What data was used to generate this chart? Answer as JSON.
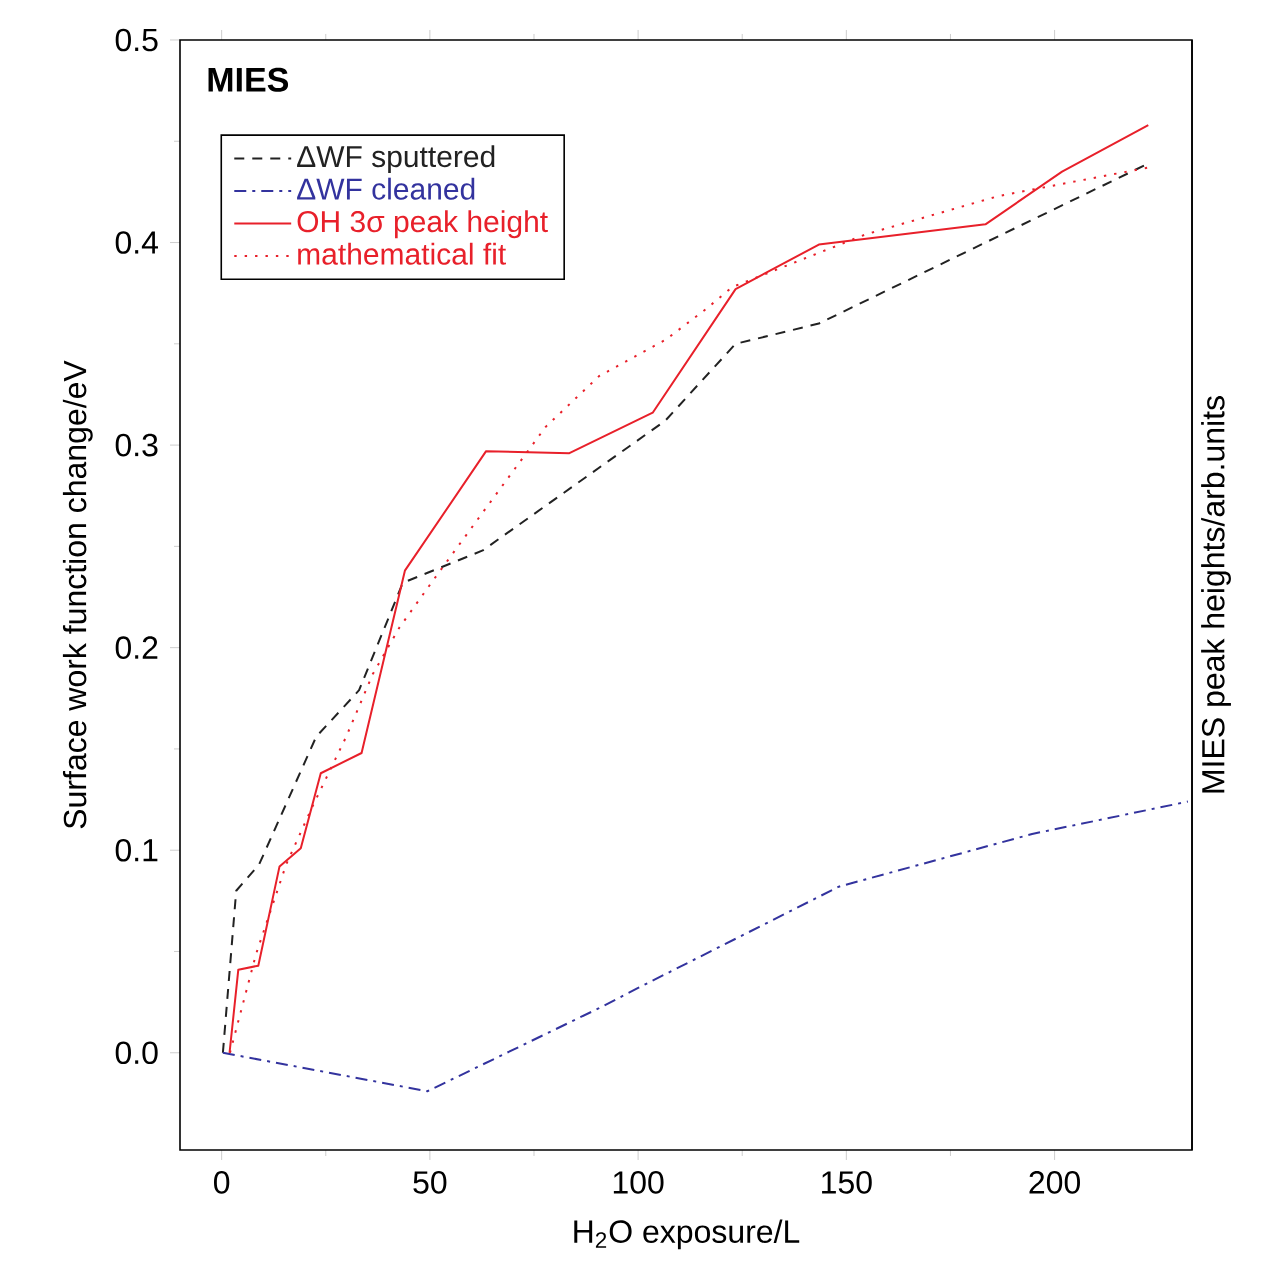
{
  "chart_data": {
    "type": "line",
    "xlabel": "H$_{2}$O exposure/L",
    "ylabel": "Surface work function change/eV",
    "y2label": "MIES peak heights/arb.units",
    "annotations": [
      "**MIES**"
    ],
    "xlim": [
      -10,
      233
    ],
    "ylim": [
      -0.048,
      0.5
    ],
    "xticks": [
      0,
      50,
      100,
      150,
      200
    ],
    "yticks": [
      {
        "value": 0,
        "label": "0.0"
      },
      0.1,
      0.2,
      0.3,
      0.4,
      0.5
    ],
    "grid": false,
    "legend": "top left",
    "marker": "none",
    "series": [
      {
        "name": "ΔWF sputtered",
        "color": "#222222",
        "line_style": "dashed",
        "x": [
          0.3,
          3.5,
          9,
          22.7,
          33,
          43.5,
          62.7,
          106.5,
          123.4,
          143.4,
          183.4,
          222.5
        ],
        "values": [
          0,
          0.08,
          0.093,
          0.156,
          0.179,
          0.232,
          0.248,
          0.312,
          0.35,
          0.36,
          0.4,
          0.439
        ]
      },
      {
        "name": "ΔWF cleaned",
        "color": "#33339e",
        "line_style": "dashdot",
        "x": [
          0.3,
          49.4,
          90.6,
          100,
          148.2,
          194.6,
          232
        ],
        "values": [
          0,
          -0.019,
          0.022,
          0.032,
          0.082,
          0.108,
          0.124
        ]
      },
      {
        "name": "OH 3σ peak height",
        "color": "#e8202a",
        "line_style": "solid",
        "x": [
          1.9,
          4,
          8.8,
          13.9,
          19,
          23.8,
          33.6,
          44,
          63.5,
          83.5,
          103.5,
          123.4,
          143.4,
          183.4,
          201.8,
          222.5
        ],
        "values": [
          0,
          0.041,
          0.043,
          0.092,
          0.101,
          0.138,
          0.148,
          0.238,
          0.297,
          0.296,
          0.316,
          0.377,
          0.399,
          0.409,
          0.435,
          0.458
        ]
      },
      {
        "name": "mathematical fit",
        "color": "#e8202a",
        "line_style": "dotted",
        "x": [
          2,
          8.3,
          15.5,
          21.9,
          29.9,
          36.3,
          42.7,
          50.7,
          63.5,
          77.8,
          90.6,
          106.6,
          116.2,
          122.6,
          154.6,
          186.6,
          222.5
        ],
        "values": [
          0,
          0.049,
          0.093,
          0.122,
          0.156,
          0.187,
          0.21,
          0.233,
          0.269,
          0.309,
          0.334,
          0.352,
          0.367,
          0.378,
          0.404,
          0.423,
          0.437
        ]
      }
    ]
  }
}
